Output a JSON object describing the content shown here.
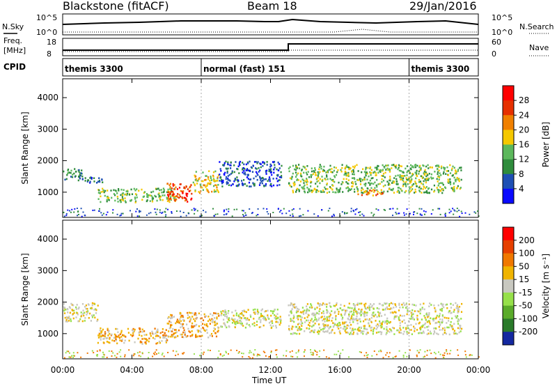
{
  "header": {
    "title": "Blackstone (fitACF)",
    "beam": "Beam 18",
    "date": "29/Jan/2016"
  },
  "status_panels": {
    "nsky_label": "N.Sky",
    "nsearch_label": "N.Search",
    "noise_ticks": [
      "10^5",
      "10^0"
    ],
    "noise_ticks_right": [
      "10^5",
      "10^0"
    ],
    "freq_label_1": "Freq.",
    "freq_label_2": "[MHz]",
    "freq_ticks": [
      "18",
      "8"
    ],
    "nave_label": "Nave",
    "nave_ticks": [
      "60",
      "0"
    ],
    "cpid_label": "CPID",
    "cpid_segments": [
      {
        "label": "themis 3300",
        "start_hour": 0,
        "end_hour": 8
      },
      {
        "label": "normal (fast) 151",
        "start_hour": 8,
        "end_hour": 20
      },
      {
        "label": "themis 3300",
        "start_hour": 20,
        "end_hour": 24
      }
    ]
  },
  "chart_data": [
    {
      "type": "heatmap",
      "name": "power",
      "ylabel": "Slant Range [km]",
      "yticks": [
        "1000",
        "2000",
        "3000",
        "4000"
      ],
      "ylim": [
        200,
        4600
      ],
      "xlim": [
        0,
        24
      ],
      "colorbar_label": "Power [dB]",
      "colorbar_ticks": [
        "4",
        "8",
        "12",
        "16",
        "20",
        "24",
        "28"
      ],
      "colorbar_colors": [
        "#0a0aff",
        "#1e4fb4",
        "#2f8c3c",
        "#5cb85c",
        "#f5c800",
        "#f08000",
        "#e63000",
        "#ff0000"
      ],
      "bands": [
        {
          "x": [
            0.0,
            1.1
          ],
          "y": [
            1400,
            1800
          ],
          "level": 2
        },
        {
          "x": [
            1.1,
            2.5
          ],
          "y": [
            1300,
            1500
          ],
          "level": 1
        },
        {
          "x": [
            2.0,
            6.5
          ],
          "y": [
            700,
            1150
          ],
          "level": 3
        },
        {
          "x": [
            6.0,
            7.5
          ],
          "y": [
            700,
            1300
          ],
          "level": 6
        },
        {
          "x": [
            7.5,
            9.0
          ],
          "y": [
            1000,
            1700
          ],
          "level": 4
        },
        {
          "x": [
            9.0,
            12.6
          ],
          "y": [
            1200,
            2000
          ],
          "level": 1
        },
        {
          "x": [
            13.0,
            23.0
          ],
          "y": [
            1000,
            1900
          ],
          "level": 3
        },
        {
          "x": [
            17.0,
            18.5
          ],
          "y": [
            900,
            1100
          ],
          "level": 5
        }
      ]
    },
    {
      "type": "heatmap",
      "name": "velocity",
      "ylabel": "Slant Range [km]",
      "yticks": [
        "1000",
        "2000",
        "3000",
        "4000"
      ],
      "ylim": [
        200,
        4600
      ],
      "xlim": [
        0,
        24
      ],
      "colorbar_label": "Velocity [m s⁻¹]",
      "colorbar_ticks": [
        "200",
        "100",
        "50",
        "15",
        "-15",
        "-50",
        "-100",
        "-200"
      ],
      "colorbar_colors": [
        "#1428a0",
        "#2a7a2a",
        "#5aab2a",
        "#96e04a",
        "#c8c8c0",
        "#f0b400",
        "#f07800",
        "#e64000",
        "#ff0000"
      ],
      "bands": [
        {
          "x": [
            0.0,
            2.0
          ],
          "y": [
            1400,
            2000
          ],
          "level": 4
        },
        {
          "x": [
            2.0,
            6.0
          ],
          "y": [
            700,
            1200
          ],
          "level": 5
        },
        {
          "x": [
            6.0,
            9.0
          ],
          "y": [
            900,
            1700
          ],
          "level": 5
        },
        {
          "x": [
            9.0,
            12.6
          ],
          "y": [
            1200,
            1800
          ],
          "level": 4
        },
        {
          "x": [
            13.0,
            23.0
          ],
          "y": [
            1000,
            2000
          ],
          "level": 4
        }
      ]
    }
  ],
  "xaxis": {
    "label": "Time UT",
    "ticks": [
      "00:00",
      "04:00",
      "08:00",
      "12:00",
      "16:00",
      "20:00",
      "00:00"
    ]
  }
}
